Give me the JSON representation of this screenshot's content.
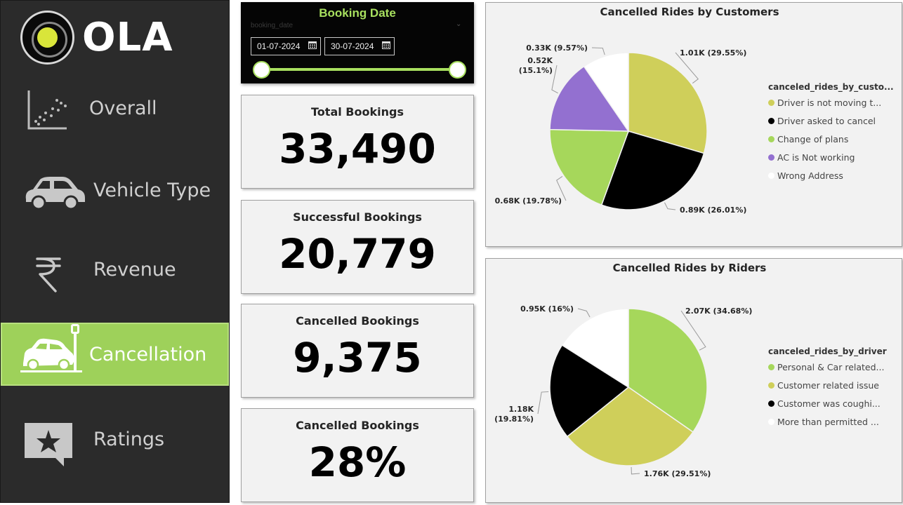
{
  "brand": {
    "name": "OLA",
    "accent": "#d9e53a"
  },
  "nav": [
    {
      "label": "Overall",
      "icon": "scatter-plot-icon",
      "active": false
    },
    {
      "label": "Vehicle Type",
      "icon": "car-icon",
      "active": false
    },
    {
      "label": "Revenue",
      "icon": "rupee-icon",
      "active": false
    },
    {
      "label": "Cancellation",
      "icon": "car-crash-icon",
      "active": true
    },
    {
      "label": "Ratings",
      "icon": "star-message-icon",
      "active": false
    }
  ],
  "slicer": {
    "title": "Booking Date",
    "field": "booking_date",
    "start": "01-07-2024",
    "end": "30-07-2024",
    "range_fraction": [
      0,
      1
    ]
  },
  "cards": [
    {
      "title": "Total Bookings",
      "value": "33,490"
    },
    {
      "title": "Successful Bookings",
      "value": "20,779"
    },
    {
      "title": "Cancelled Bookings",
      "value": "9,375"
    },
    {
      "title": "Cancelled Bookings",
      "value": "28%"
    }
  ],
  "chart_data": [
    {
      "type": "pie",
      "title": "Cancelled Rides by Customers",
      "legend_title": "canceled_rides_by_custo...",
      "legend_position": "right",
      "slices": [
        {
          "name": "Driver is not moving t...",
          "value": 1.01,
          "percent": 29.55,
          "label": "1.01K (29.55%)",
          "color": "#cfcf5a"
        },
        {
          "name": "Driver asked to cancel",
          "value": 0.89,
          "percent": 26.01,
          "label": "0.89K (26.01%)",
          "color": "#000000"
        },
        {
          "name": "Change of plans",
          "value": 0.68,
          "percent": 19.78,
          "label": "0.68K (19.78%)",
          "color": "#a6d75b"
        },
        {
          "name": "AC is Not working",
          "value": 0.52,
          "percent": 15.1,
          "label": "0.52K (15.1%)",
          "color": "#9370d0"
        },
        {
          "name": "Wrong Address",
          "value": 0.33,
          "percent": 9.57,
          "label": "0.33K (9.57%)",
          "color": "#ffffff"
        }
      ]
    },
    {
      "type": "pie",
      "title": "Cancelled Rides by Riders",
      "legend_title": "canceled_rides_by_driver",
      "legend_position": "right",
      "slices": [
        {
          "name": "Personal & Car related...",
          "value": 2.07,
          "percent": 34.68,
          "label": "2.07K (34.68%)",
          "color": "#a6d75b"
        },
        {
          "name": "Customer related issue",
          "value": 1.76,
          "percent": 29.51,
          "label": "1.76K (29.51%)",
          "color": "#cfcf5a"
        },
        {
          "name": "Customer was coughi...",
          "value": 1.18,
          "percent": 19.81,
          "label": "1.18K (19.81%)",
          "color": "#000000"
        },
        {
          "name": "More than permitted ...",
          "value": 0.95,
          "percent": 16,
          "label": "0.95K (16%)",
          "color": "#ffffff"
        }
      ]
    }
  ]
}
